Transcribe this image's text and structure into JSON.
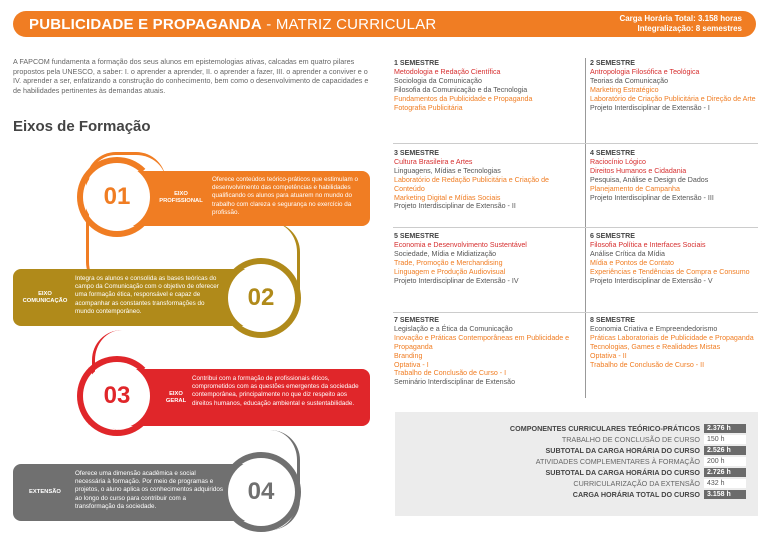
{
  "header": {
    "title_bold": "PUBLICIDADE E PROPAGANDA",
    "title_sep": " - ",
    "title_light": "MATRIZ CURRICULAR",
    "hours_line1": "Carga Horária Total: 3.158 horas",
    "hours_line2": "Integralização: 8 semestres"
  },
  "intro": "A FAPCOM fundamenta a formação dos seus alunos em epistemologias ativas, calcadas em quatro pilares propostos pela UNESCO, a saber: I. o aprender a aprender, II. o aprender a fazer, III. o aprender a conviver e o IV. aprender a ser, enfatizando a construção do conhecimento, bem como o desenvolvimento de capacidades e de habilidades pertinentes às demandas atuais.",
  "eixos_title": "Eixos de Formação",
  "eixos": [
    {
      "num": "01",
      "label1": "EIXO",
      "label2": "PROFISSIONAL",
      "color": "#f07d23",
      "desc": "Oferece conteúdos teórico-práticos que estimulam o desenvolvimento das competências e habilidades qualificando os alunos para atuarem no mundo do trabalho com clareza e segurança no exercício da profissão."
    },
    {
      "num": "02",
      "label1": "EIXO",
      "label2": "COMUNICAÇÃO",
      "color": "#b08a1a",
      "desc": "Integra os alunos e consolida as bases teóricas do campo da Comunicação com o objetivo de oferecer uma formação ética, responsável e capaz de acompanhar as constantes transformações do mundo contemporâneo."
    },
    {
      "num": "03",
      "label1": "EIXO",
      "label2": "GERAL",
      "color": "#e0262a",
      "desc": "Contribui com a formação de profissionais éticos, comprometidos com as questões emergentes da sociedade contemporânea, principalmente no que diz respeito aos direitos humanos, educação ambiental e sustentabilidade."
    },
    {
      "num": "04",
      "label1": "EXTENSÃO",
      "label2": "",
      "color": "#707070",
      "desc": "Oferece uma dimensão acadêmica e social necessária à formação. Por meio de programas e projetos, o aluno aplica os conhecimentos adquiridos ao longo do curso para contribuir com a transformação da sociedade."
    }
  ],
  "semesters": [
    {
      "title": "1 SEMESTRE",
      "items": [
        {
          "t": "Metodologia e Redação Científica",
          "c": "r"
        },
        {
          "t": "Sociologia da Comunicação",
          "c": "g"
        },
        {
          "t": "Filosofia da Comunicação e da Tecnologia",
          "c": "g"
        },
        {
          "t": "Fundamentos da Publicidade e Propaganda",
          "c": "o"
        },
        {
          "t": "Fotografia Publicitária",
          "c": "o"
        }
      ]
    },
    {
      "title": "2 SEMESTRE",
      "items": [
        {
          "t": "Antropologia Filosófica e Teológica",
          "c": "r"
        },
        {
          "t": "Teorias da Comunicação",
          "c": "g"
        },
        {
          "t": "Marketing Estratégico",
          "c": "o"
        },
        {
          "t": "Laboratório de Criação Publicitária e Direção de Arte",
          "c": "o"
        },
        {
          "t": "Projeto Interdisciplinar de Extensão - I",
          "c": "g"
        }
      ]
    },
    {
      "title": "3 SEMESTRE",
      "items": [
        {
          "t": "Cultura Brasileira e Artes",
          "c": "r"
        },
        {
          "t": "Linguagens, Mídias e Tecnologias",
          "c": "g"
        },
        {
          "t": "Laboratório de Redação Publicitária e Criação de Conteúdo",
          "c": "o"
        },
        {
          "t": "Marketing Digital e Mídias Sociais",
          "c": "o"
        },
        {
          "t": "Projeto Interdisciplinar de Extensão - II",
          "c": "g"
        }
      ]
    },
    {
      "title": "4 SEMESTRE",
      "items": [
        {
          "t": "Raciocínio Lógico",
          "c": "r"
        },
        {
          "t": "Direitos Humanos e Cidadania",
          "c": "r"
        },
        {
          "t": "Pesquisa, Análise e Design de Dados",
          "c": "g"
        },
        {
          "t": "Planejamento de Campanha",
          "c": "o"
        },
        {
          "t": "Projeto Interdisciplinar de Extensão - III",
          "c": "g"
        }
      ]
    },
    {
      "title": "5 SEMESTRE",
      "items": [
        {
          "t": "Economia e Desenvolvimento Sustentável",
          "c": "r"
        },
        {
          "t": "Sociedade, Mídia e Midiatização",
          "c": "g"
        },
        {
          "t": "Trade, Promoção e Merchandising",
          "c": "o"
        },
        {
          "t": "Linguagem e Produção Audiovisual",
          "c": "o"
        },
        {
          "t": "Projeto Interdisciplinar de Extensão - IV",
          "c": "g"
        }
      ]
    },
    {
      "title": "6 SEMESTRE",
      "items": [
        {
          "t": "Filosofia Política e Interfaces Sociais",
          "c": "r"
        },
        {
          "t": "Análise Crítica da Mídia",
          "c": "g"
        },
        {
          "t": "Mídia e Pontos de Contato",
          "c": "o"
        },
        {
          "t": "Experiências e Tendências de Compra e Consumo",
          "c": "o"
        },
        {
          "t": "Projeto Interdisciplinar de Extensão - V",
          "c": "g"
        }
      ]
    },
    {
      "title": "7 SEMESTRE",
      "items": [
        {
          "t": "Legislação e a Ética da Comunicação",
          "c": "g"
        },
        {
          "t": "Inovação e Práticas Contemporâneas em Publicidade e Propaganda",
          "c": "o"
        },
        {
          "t": "Branding",
          "c": "o"
        },
        {
          "t": "Optativa - I",
          "c": "o"
        },
        {
          "t": "Trabalho de Conclusão de Curso - I",
          "c": "o"
        },
        {
          "t": "Seminário Interdisciplinar de Extensão",
          "c": "g"
        }
      ]
    },
    {
      "title": "8 SEMESTRE",
      "items": [
        {
          "t": "Economia Criativa e Empreendedorismo",
          "c": "g"
        },
        {
          "t": "Práticas Laboratoriais de Publicidade e Propaganda",
          "c": "o"
        },
        {
          "t": "Tecnologias, Games e Realidades Mistas",
          "c": "o"
        },
        {
          "t": "Optativa - II",
          "c": "o"
        },
        {
          "t": "Trabalho de Conclusão de Curso - II",
          "c": "o"
        }
      ]
    }
  ],
  "summary": [
    {
      "k": "COMPONENTES CURRICULARES TEÓRICO-PRÁTICOS",
      "v": "2.376 h",
      "b": true
    },
    {
      "k": "TRABALHO DE CONCLUSÃO DE CURSO",
      "v": "150 h",
      "b": false
    },
    {
      "k": "SUBTOTAL DA CARGA HORÁRIA DO CURSO",
      "v": "2.526 h",
      "b": true
    },
    {
      "k": "ATIVIDADES COMPLEMENTARES À FORMAÇÃO",
      "v": "200 h",
      "b": false
    },
    {
      "k": "SUBTOTAL DA CARGA HORÁRIA DO CURSO",
      "v": "2.726 h",
      "b": true
    },
    {
      "k": "CURRICULARIZAÇÃO DA EXTENSÃO",
      "v": "432 h",
      "b": false
    },
    {
      "k": "CARGA HORÁRIA TOTAL DO CURSO",
      "v": "3.158 h",
      "b": true
    }
  ]
}
